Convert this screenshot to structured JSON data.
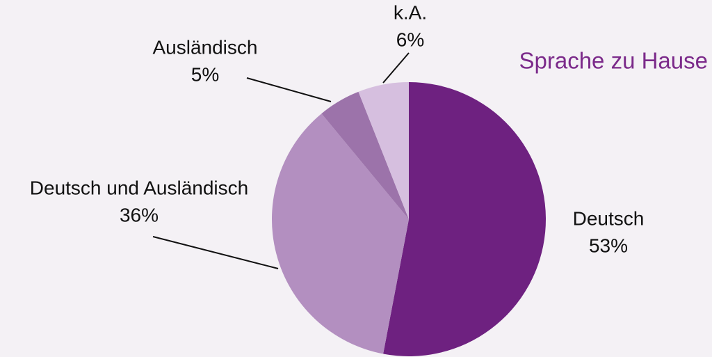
{
  "chart_data": {
    "type": "pie",
    "title": "Sprache zu Hause",
    "title_color": "#7b2a8a",
    "categories": [
      "Deutsch",
      "Deutsch und Ausländisch",
      "Ausländisch",
      "k.A."
    ],
    "values": [
      53,
      36,
      5,
      6
    ],
    "value_labels": [
      "53%",
      "36%",
      "5%",
      "6%"
    ],
    "colors": [
      "#6e2180",
      "#b38fc0",
      "#9c73aa",
      "#d6bfdf"
    ]
  }
}
